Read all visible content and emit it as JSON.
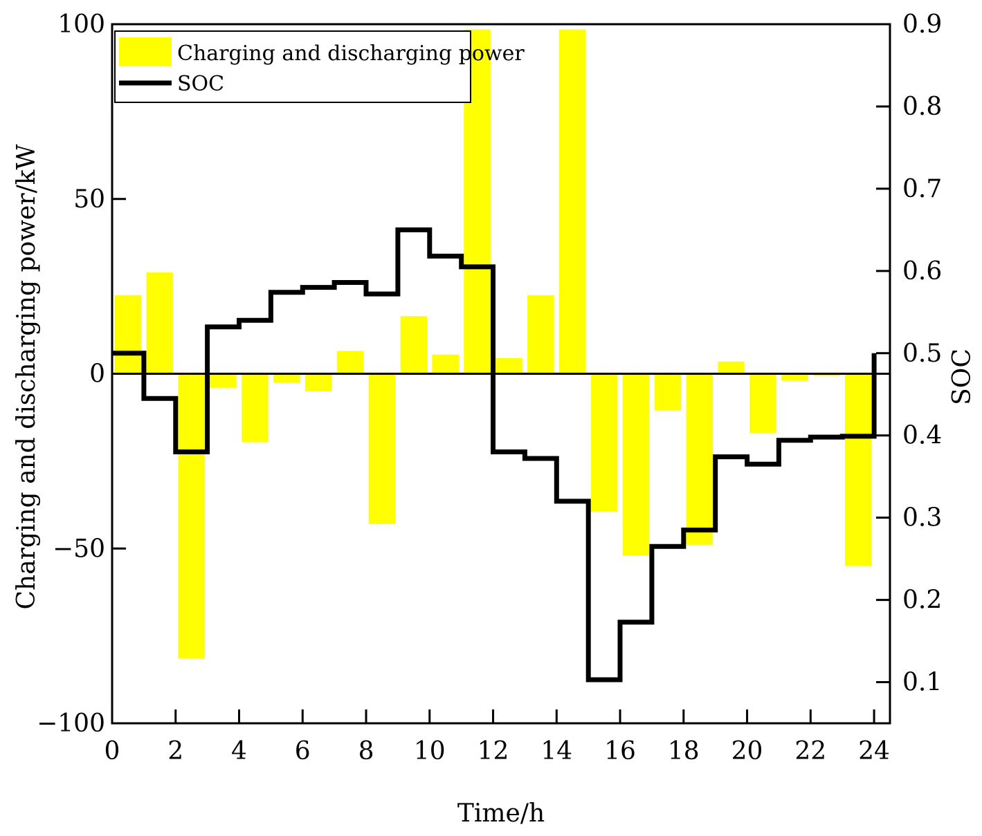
{
  "chart_data": {
    "type": "bar+line",
    "title": "",
    "xlabel": "Time/h",
    "ylabel_left": "Charging and discharging power/kW",
    "ylabel_right": "SOC",
    "xlim": [
      0,
      24.5
    ],
    "ylim_left": [
      -100,
      100
    ],
    "ylim_right": [
      0.05,
      0.9
    ],
    "x_ticks": [
      "0",
      "2",
      "4",
      "6",
      "8",
      "10",
      "12",
      "14",
      "16",
      "18",
      "20",
      "22",
      "24"
    ],
    "y_left_ticks": [
      "100",
      "50",
      "0",
      "−50",
      "−100"
    ],
    "y_right_ticks": [
      "0.9",
      "0.8",
      "0.7",
      "0.6",
      "0.5",
      "0.4",
      "0.3",
      "0.2",
      "0.1"
    ],
    "grid": false,
    "legend": {
      "position": "top-left",
      "entries": [
        "Charging and discharging power",
        "SOC"
      ]
    },
    "series": [
      {
        "name": "Charging and discharging power",
        "kind": "bar",
        "axis": "left",
        "color": "#ffff00",
        "x": [
          1,
          2,
          3,
          4,
          5,
          6,
          7,
          8,
          9,
          10,
          11,
          12,
          13,
          14,
          15,
          16,
          17,
          18,
          19,
          20,
          21,
          22,
          23,
          24
        ],
        "values": [
          22.5,
          29,
          -81.5,
          -4,
          -19.5,
          -2.5,
          -5,
          6.5,
          -43,
          16.5,
          5.5,
          98.5,
          4.5,
          22.5,
          98.5,
          -39.5,
          -52,
          -10.5,
          -49,
          3.5,
          -17,
          -2,
          -0.5,
          -55
        ]
      },
      {
        "name": "SOC",
        "kind": "step-line",
        "axis": "right",
        "color": "#000000",
        "x": [
          0,
          1,
          2,
          3,
          4,
          5,
          6,
          7,
          8,
          9,
          10,
          11,
          12,
          13,
          14,
          15,
          16,
          17,
          18,
          19,
          20,
          21,
          22,
          23,
          24
        ],
        "values": [
          0.5,
          0.445,
          0.38,
          0.532,
          0.54,
          0.574,
          0.58,
          0.586,
          0.572,
          0.65,
          0.618,
          0.605,
          0.38,
          0.372,
          0.32,
          0.103,
          0.173,
          0.265,
          0.285,
          0.374,
          0.365,
          0.394,
          0.398,
          0.399,
          0.5
        ]
      }
    ]
  }
}
